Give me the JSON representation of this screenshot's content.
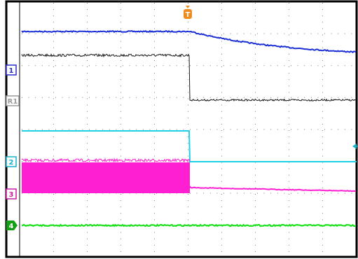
{
  "trigger": {
    "label": "T",
    "color": "#f08c1e"
  },
  "channels": [
    {
      "id": "ch1",
      "label": "1",
      "color": "#2d2dc8",
      "trace_color": "#1a2fd6"
    },
    {
      "id": "ref1",
      "label": "R1",
      "color": "#9a9a9a",
      "trace_color": "#1a1a1a"
    },
    {
      "id": "ch2",
      "label": "2",
      "color": "#19b0c8",
      "trace_color": "#1ed0e6"
    },
    {
      "id": "ch3",
      "label": "3",
      "color": "#c81ea0",
      "trace_color": "#ff1fd2"
    },
    {
      "id": "ch4",
      "label": "4",
      "color": "#14a014",
      "trace_color": "#1ee01e"
    }
  ],
  "colors": {
    "frame": "#000000",
    "grid_dot": "#7a7a7a",
    "background": "#ffffff"
  },
  "cursor_arrow": {
    "color": "#19b0c8"
  }
}
